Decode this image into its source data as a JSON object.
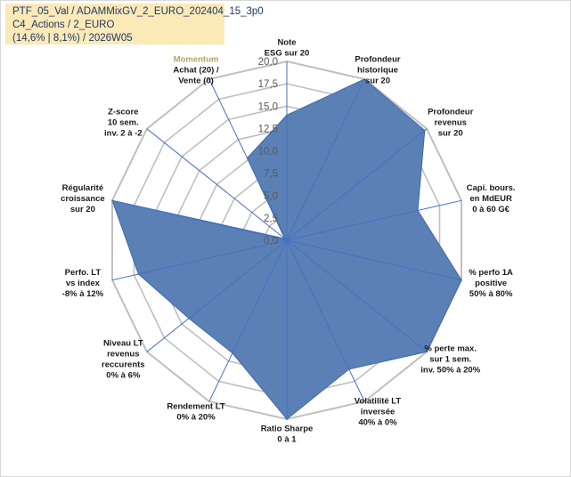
{
  "info": {
    "line1": "PTF_05_Val / ADAMMixGV_2_EURO_202404_15_3p0",
    "line2": "C4_Actions / 2_EURO",
    "line3": "(14,6% | 8,1%) / 2026W05"
  },
  "colors": {
    "fill": "#5b80b5",
    "stroke": "#3f6aa6",
    "grid": "#bfbfbf",
    "spoke": "#4472c4",
    "highlight_label": "#b8a06a",
    "box": "#fce9b8"
  },
  "chart_data": {
    "type": "radar",
    "range": [
      0,
      20
    ],
    "tick_labels": [
      "0,0",
      "2,5",
      "5,0",
      "7,5",
      "10,0",
      "12,5",
      "15,0",
      "17,5",
      "20,0"
    ],
    "axes": [
      {
        "lines": [
          "Note",
          "ESG sur 20"
        ],
        "value": 14
      },
      {
        "lines": [
          "Profondeur",
          "historique",
          "sur 20"
        ],
        "value": 20
      },
      {
        "lines": [
          "Profondeur",
          "revenus",
          "sur 20"
        ],
        "value": 19.7
      },
      {
        "lines": [
          "Capi. bours.",
          "en MdEUR",
          "0 à 60 G€"
        ],
        "value": 15
      },
      {
        "lines": [
          "% perfo 1A",
          "positive",
          "50% à 80%"
        ],
        "value": 20
      },
      {
        "lines": [
          "% perte max.",
          "sur 1 sem.",
          "inv. 50% à 20%"
        ],
        "value": 20
      },
      {
        "lines": [
          "Volatilité LT",
          "inversée",
          "40% à 0%"
        ],
        "value": 16
      },
      {
        "lines": [
          "Ratio Sharpe",
          "0 à 1"
        ],
        "value": 20
      },
      {
        "lines": [
          "Rendement LT",
          "0% à 20%"
        ],
        "value": 14
      },
      {
        "lines": [
          "Niveau LT",
          "revenus",
          "reccurents",
          "0% à 6%"
        ],
        "value": 14
      },
      {
        "lines": [
          "Perfo. LT",
          "vs index",
          "-8% à 12%"
        ],
        "value": 17
      },
      {
        "lines": [
          "Régularité",
          "croissance",
          "sur 20"
        ],
        "value": 20
      },
      {
        "lines": [
          "Z-score",
          "10 sem.",
          "inv. 2 à -2"
        ],
        "value": 0.3
      },
      {
        "lines": [
          "Momentum",
          "Achat (20) /",
          "Vente (0)"
        ],
        "value": 10.2,
        "highlight_first": true
      }
    ]
  }
}
